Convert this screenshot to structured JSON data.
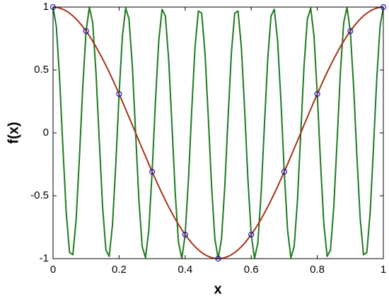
{
  "chart_data": {
    "type": "line",
    "xlabel": "x",
    "ylabel": "f(x)",
    "xlim": [
      0,
      1
    ],
    "ylim": [
      -1,
      1
    ],
    "xticks": [
      0,
      0.2,
      0.4,
      0.6,
      0.8,
      1
    ],
    "yticks": [
      -1,
      -0.5,
      0,
      0.5,
      1
    ],
    "grid": false,
    "x": [
      0,
      0.01,
      0.02,
      0.03,
      0.04,
      0.05,
      0.06,
      0.07,
      0.08,
      0.09,
      0.1,
      0.11,
      0.12,
      0.13,
      0.14,
      0.15,
      0.16,
      0.17,
      0.18,
      0.19,
      0.2,
      0.21,
      0.22,
      0.23,
      0.24,
      0.25,
      0.26,
      0.27,
      0.28,
      0.29,
      0.3,
      0.31,
      0.32,
      0.33,
      0.34,
      0.35,
      0.36,
      0.37,
      0.38,
      0.39,
      0.4,
      0.41,
      0.42,
      0.43,
      0.44,
      0.45,
      0.46,
      0.47,
      0.48,
      0.49,
      0.5,
      0.51,
      0.52,
      0.53,
      0.54,
      0.55,
      0.56,
      0.57,
      0.58,
      0.59,
      0.6,
      0.61,
      0.62,
      0.63,
      0.64,
      0.65,
      0.66,
      0.67,
      0.68,
      0.69,
      0.7,
      0.71,
      0.72,
      0.73,
      0.74,
      0.75,
      0.76,
      0.77,
      0.78,
      0.79,
      0.8,
      0.81,
      0.82,
      0.83,
      0.84,
      0.85,
      0.86,
      0.87,
      0.88,
      0.89,
      0.9,
      0.91,
      0.92,
      0.93,
      0.94,
      0.95,
      0.96,
      0.97,
      0.98,
      0.99,
      1
    ],
    "series": [
      {
        "color": "#1e7a1e",
        "values": [
          1,
          0.844,
          0.426,
          -0.125,
          -0.637,
          -0.951,
          -0.969,
          -0.685,
          -0.187,
          0.368,
          0.809,
          0.998,
          0.876,
          0.482,
          -0.063,
          -0.588,
          -0.93,
          -0.982,
          -0.729,
          -0.249,
          0.309,
          0.771,
          0.992,
          0.905,
          0.536,
          0,
          -0.536,
          -0.905,
          -0.992,
          -0.771,
          -0.309,
          0.249,
          0.729,
          0.982,
          0.93,
          0.588,
          0.063,
          -0.482,
          -0.876,
          -0.998,
          -0.809,
          -0.368,
          0.187,
          0.685,
          0.969,
          0.951,
          0.637,
          0.125,
          -0.426,
          -0.844,
          -1,
          -0.844,
          -0.426,
          0.125,
          0.637,
          0.951,
          0.969,
          0.685,
          0.187,
          -0.368,
          -0.809,
          -0.998,
          -0.876,
          -0.482,
          0.063,
          0.588,
          0.93,
          0.982,
          0.729,
          0.249,
          -0.309,
          -0.771,
          -0.992,
          -0.905,
          -0.536,
          0,
          0.536,
          0.905,
          0.992,
          0.771,
          0.309,
          -0.249,
          -0.729,
          -0.982,
          -0.93,
          -0.588,
          -0.063,
          0.482,
          0.876,
          0.998,
          0.809,
          0.368,
          -0.187,
          -0.685,
          -0.969,
          -0.951,
          -0.637,
          -0.125,
          0.426,
          0.844,
          1
        ]
      },
      {
        "color": "#a8321a",
        "values": [
          1,
          0.998,
          0.992,
          0.982,
          0.969,
          0.951,
          0.93,
          0.905,
          0.876,
          0.844,
          0.809,
          0.771,
          0.729,
          0.685,
          0.637,
          0.588,
          0.536,
          0.482,
          0.426,
          0.368,
          0.309,
          0.249,
          0.187,
          0.125,
          0.063,
          0,
          -0.063,
          -0.125,
          -0.187,
          -0.249,
          -0.309,
          -0.368,
          -0.426,
          -0.482,
          -0.536,
          -0.588,
          -0.637,
          -0.685,
          -0.729,
          -0.771,
          -0.809,
          -0.844,
          -0.876,
          -0.905,
          -0.93,
          -0.951,
          -0.969,
          -0.982,
          -0.992,
          -0.998,
          -1,
          -0.998,
          -0.992,
          -0.982,
          -0.969,
          -0.951,
          -0.93,
          -0.905,
          -0.876,
          -0.844,
          -0.809,
          -0.771,
          -0.729,
          -0.685,
          -0.637,
          -0.588,
          -0.536,
          -0.482,
          -0.426,
          -0.368,
          -0.309,
          -0.249,
          -0.187,
          -0.125,
          -0.063,
          0,
          0.063,
          0.125,
          0.187,
          0.249,
          0.309,
          0.368,
          0.426,
          0.482,
          0.536,
          0.588,
          0.637,
          0.685,
          0.729,
          0.771,
          0.809,
          0.844,
          0.876,
          0.905,
          0.93,
          0.951,
          0.969,
          0.982,
          0.992,
          0.998,
          1
        ]
      },
      {
        "color": "#1a1acc",
        "marker": "o",
        "x": [
          0,
          0.1,
          0.2,
          0.3,
          0.4,
          0.5,
          0.6,
          0.7,
          0.8,
          0.9,
          1
        ],
        "values": [
          1,
          0.809,
          0.309,
          -0.309,
          -0.809,
          -1,
          -0.809,
          -0.309,
          0.309,
          0.809,
          1
        ]
      }
    ]
  }
}
